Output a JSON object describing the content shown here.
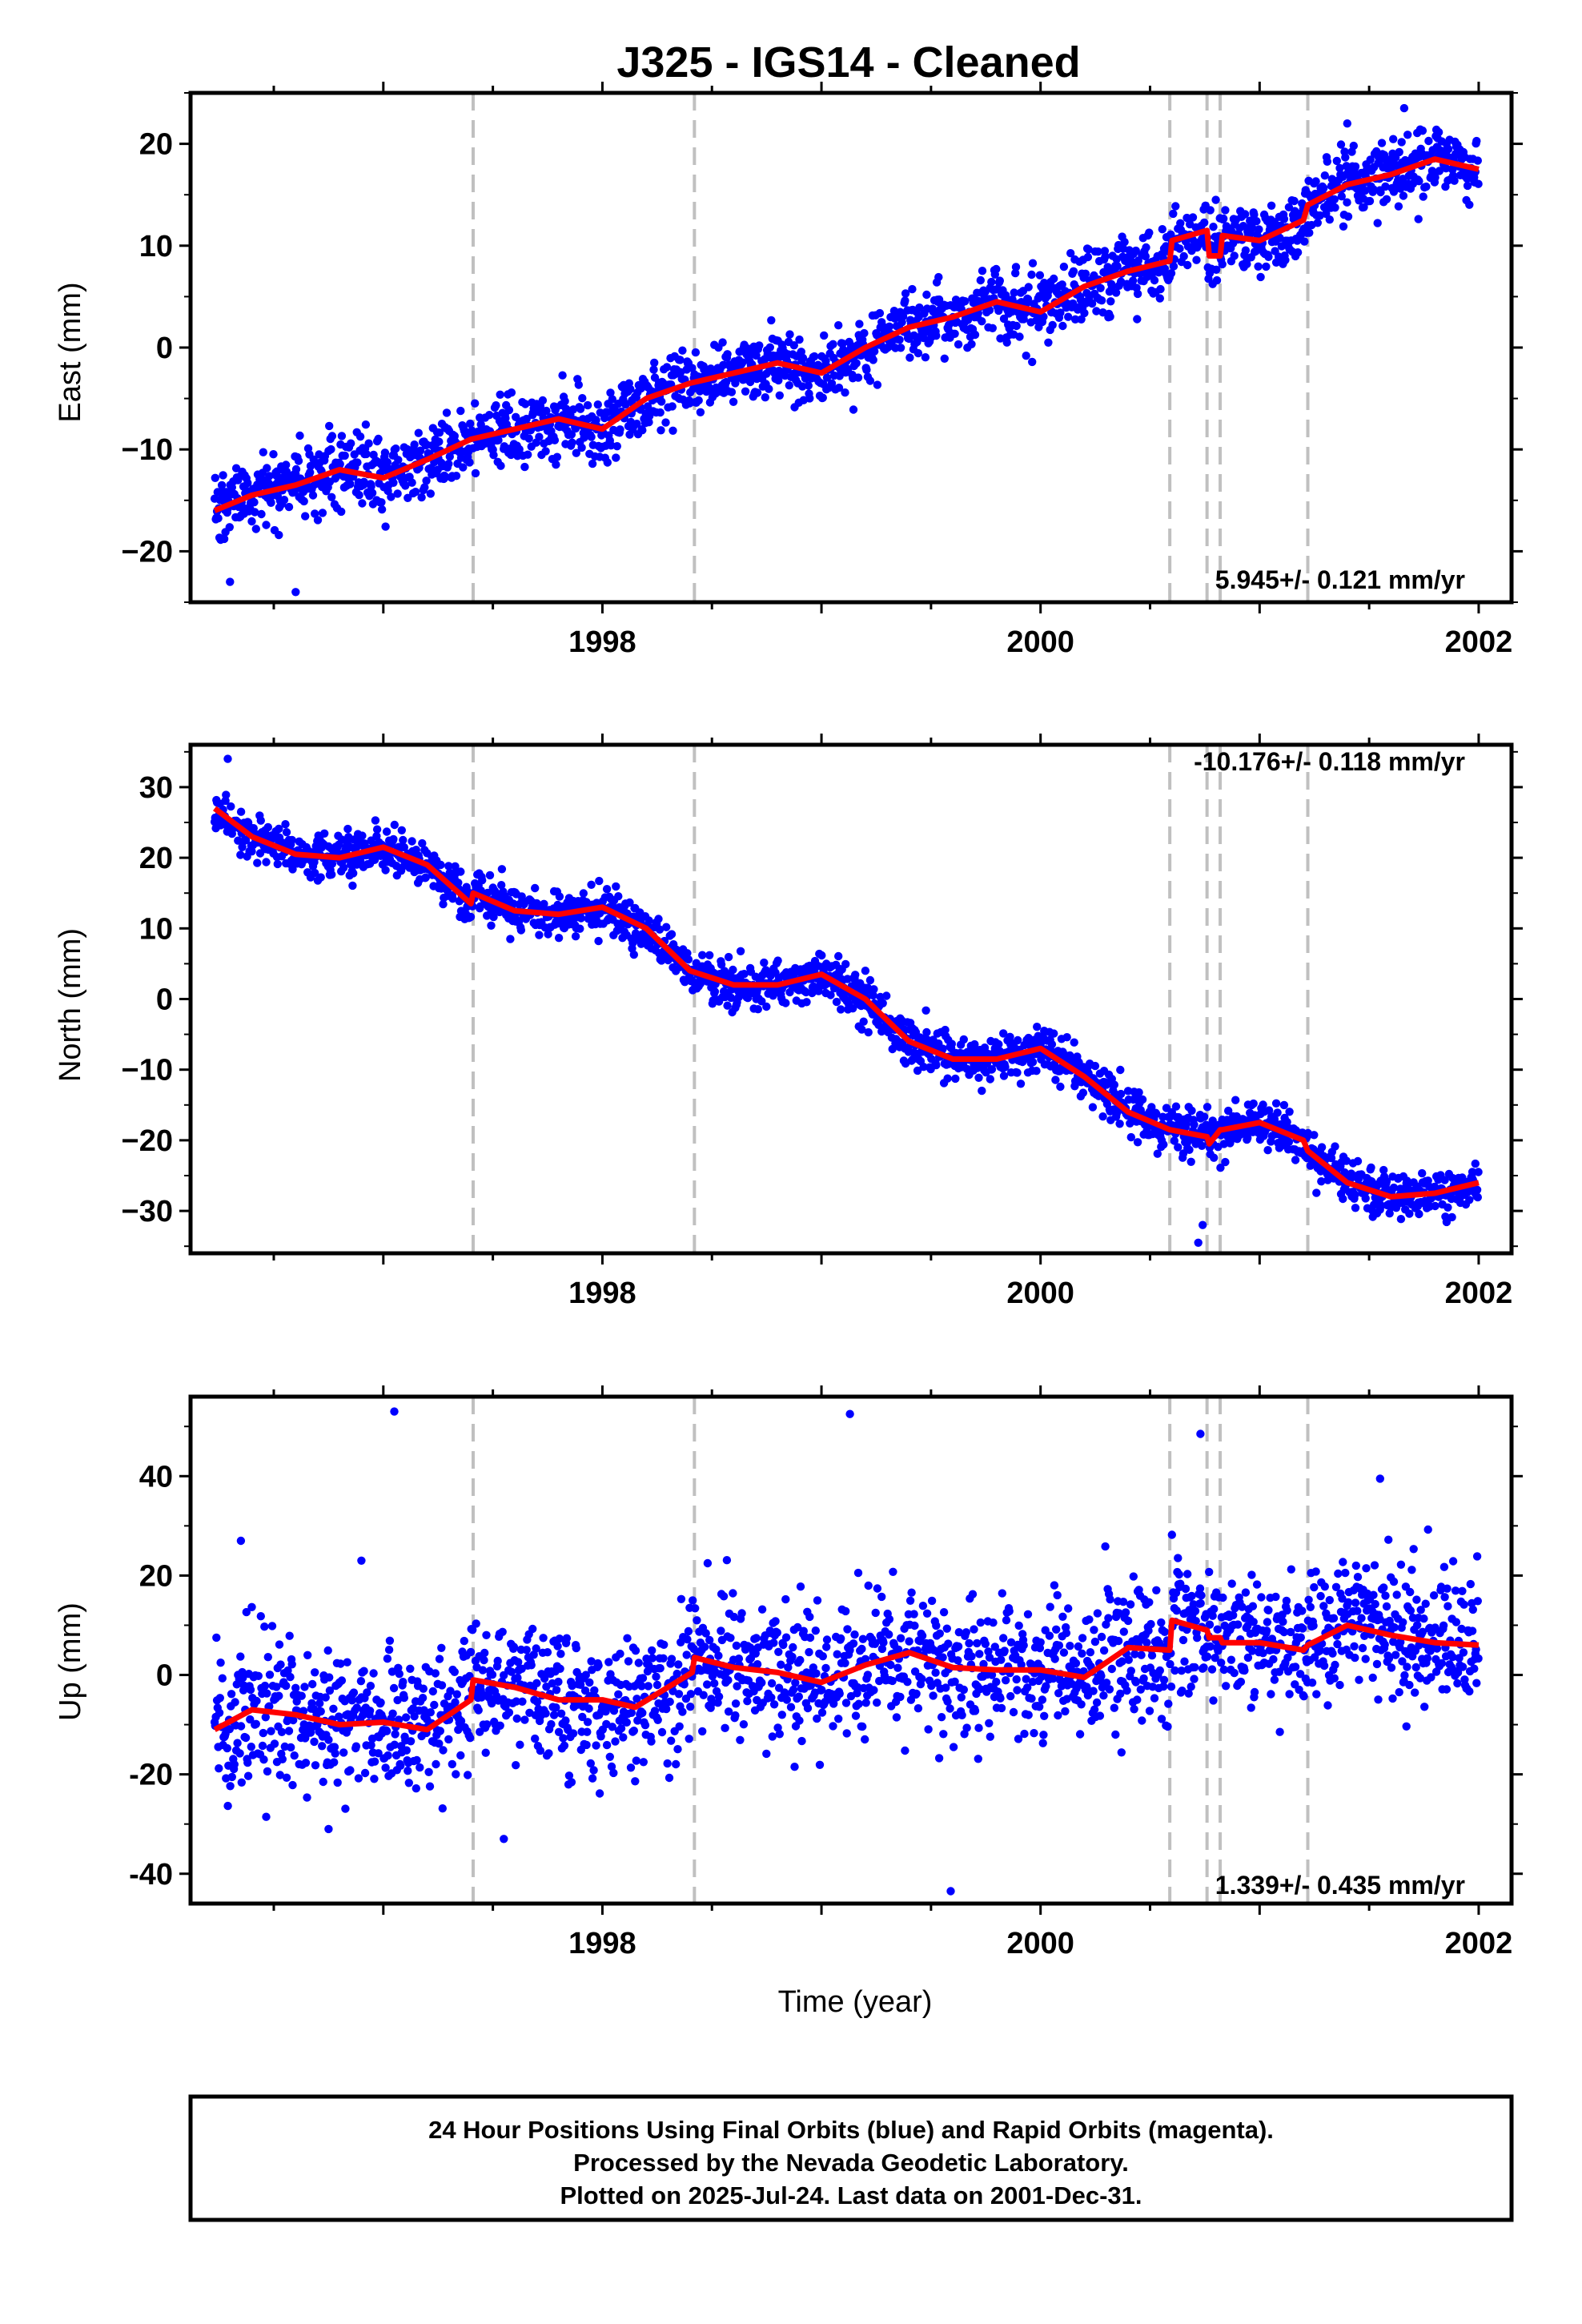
{
  "title": "J325  - IGS14 - Cleaned",
  "colors": {
    "final": "#0000ff",
    "model": "#ff0000",
    "breaks": "#c0c0c0",
    "frame": "#000000"
  },
  "footer": {
    "line1": "24 Hour Positions Using Final Orbits (blue) and Rapid Orbits (magenta).",
    "line2": "Processed by the Nevada Geodetic Laboratory.",
    "line3": "Plotted on 2025-Jul-24. Last data on 2001-Dec-31."
  },
  "chart_data": [
    {
      "type": "scatter",
      "component": "east",
      "ylabel": "East (mm)",
      "xlabel": "",
      "xlim": [
        1996.12,
        2002.15
      ],
      "ylim": [
        -25,
        25
      ],
      "xticks": [
        "1998",
        "2000",
        "2002"
      ],
      "yticks": [
        "20",
        "10",
        "0",
        "−10",
        "−20"
      ],
      "rate_label": "5.945+/- 0.121 mm/yr",
      "rate_position": "bottom-right",
      "rate_mm_per_yr": 5.945,
      "rate_sigma": 0.121,
      "scatter_sigma_mm": 1.7,
      "breaks": [
        1997.41,
        1998.42,
        2000.59,
        2000.76,
        2000.82,
        2001.22
      ],
      "model": {
        "x": [
          1996.23,
          1996.4,
          1996.6,
          1996.8,
          1997.0,
          1997.2,
          1997.4,
          1997.6,
          1997.8,
          1998.0,
          1998.2,
          1998.4,
          1998.6,
          1998.8,
          1999.0,
          1999.2,
          1999.4,
          1999.6,
          1999.8,
          2000.0,
          2000.2,
          2000.4,
          2000.59,
          2000.6,
          2000.76,
          2000.77,
          2000.82,
          2000.83,
          2001.0,
          2001.2,
          2001.22,
          2001.4,
          2001.6,
          2001.8,
          2002.0
        ],
        "y": [
          -16,
          -14.5,
          -13.5,
          -12,
          -12.8,
          -11,
          -9,
          -8,
          -7,
          -8,
          -5,
          -3.5,
          -2.5,
          -1.5,
          -2.5,
          0,
          2,
          3,
          4.5,
          3.5,
          6,
          7.5,
          8.5,
          10.5,
          11.5,
          9,
          9,
          11,
          10.5,
          12.5,
          14,
          16,
          17,
          18.5,
          17.5
        ]
      },
      "outliers": [
        {
          "x": 1996.3,
          "y": -23
        },
        {
          "x": 1996.6,
          "y": -24
        },
        {
          "x": 2000.8,
          "y": 14.5
        },
        {
          "x": 2001.4,
          "y": 22
        },
        {
          "x": 2001.66,
          "y": 23.5
        }
      ]
    },
    {
      "type": "scatter",
      "component": "north",
      "ylabel": "North (mm)",
      "xlabel": "",
      "xlim": [
        1996.12,
        2002.15
      ],
      "ylim": [
        -36,
        36
      ],
      "xticks": [
        "1998",
        "2000",
        "2002"
      ],
      "yticks": [
        "30",
        "20",
        "10",
        "0",
        "−10",
        "−20",
        "−30"
      ],
      "rate_label": "-10.176+/- 0.118 mm/yr",
      "rate_position": "top-right",
      "rate_mm_per_yr": -10.176,
      "rate_sigma": 0.118,
      "scatter_sigma_mm": 1.6,
      "breaks": [
        1997.41,
        1998.42,
        2000.59,
        2000.76,
        2000.82,
        2001.22
      ],
      "model": {
        "x": [
          1996.23,
          1996.4,
          1996.6,
          1996.8,
          1997.0,
          1997.2,
          1997.4,
          1997.41,
          1997.6,
          1997.8,
          1998.0,
          1998.2,
          1998.4,
          1998.6,
          1998.8,
          1999.0,
          1999.2,
          1999.4,
          1999.6,
          1999.8,
          2000.0,
          2000.2,
          2000.4,
          2000.59,
          2000.76,
          2000.77,
          2000.82,
          2000.83,
          2001.0,
          2001.2,
          2001.22,
          2001.4,
          2001.6,
          2001.8,
          2002.0
        ],
        "y": [
          27,
          23,
          20.5,
          20,
          21.5,
          19,
          13.5,
          15,
          12.5,
          12,
          13,
          10,
          4,
          2,
          2,
          3.5,
          0,
          -6,
          -8.5,
          -8.5,
          -7,
          -11,
          -16,
          -18.5,
          -19.5,
          -20.5,
          -18.5,
          -18.5,
          -17.5,
          -20,
          -21.5,
          -26,
          -28,
          -27.5,
          -26
        ]
      },
      "outliers": [
        {
          "x": 1996.29,
          "y": 34
        },
        {
          "x": 2000.72,
          "y": -34.5
        },
        {
          "x": 2000.74,
          "y": -32
        }
      ]
    },
    {
      "type": "scatter",
      "component": "up",
      "ylabel": "Up (mm)",
      "xlabel": "Time (year)",
      "xlim": [
        1996.12,
        2002.15
      ],
      "ylim": [
        -46,
        56
      ],
      "xticks": [
        "1998",
        "2000",
        "2002"
      ],
      "yticks": [
        "40",
        "20",
        "0",
        "-20",
        "-40"
      ],
      "rate_label": "1.339+/- 0.435 mm/yr",
      "rate_position": "bottom-right",
      "rate_mm_per_yr": 1.339,
      "rate_sigma": 0.435,
      "scatter_sigma_mm": 7,
      "breaks": [
        1997.41,
        1998.42,
        2000.59,
        2000.76,
        2000.82,
        2001.22
      ],
      "model": {
        "x": [
          1996.23,
          1996.4,
          1996.6,
          1996.8,
          1997.0,
          1997.2,
          1997.4,
          1997.41,
          1997.6,
          1997.8,
          1998.0,
          1998.15,
          1998.41,
          1998.42,
          1998.6,
          1998.8,
          1999.0,
          1999.2,
          1999.4,
          1999.6,
          1999.8,
          2000.0,
          2000.2,
          2000.4,
          2000.59,
          2000.6,
          2000.76,
          2000.77,
          2000.82,
          2000.83,
          2001.0,
          2001.2,
          2001.22,
          2001.4,
          2001.6,
          2001.8,
          2002.0
        ],
        "y": [
          -11,
          -7,
          -8,
          -10,
          -9.5,
          -11,
          -5,
          -1,
          -2.5,
          -5,
          -5,
          -6.5,
          0.5,
          3.5,
          1.5,
          0.5,
          -1.5,
          2,
          4.5,
          1.5,
          1,
          1,
          -0.5,
          5.5,
          5,
          11,
          9,
          7.5,
          7.5,
          6.5,
          6.5,
          5,
          6,
          10,
          8,
          6.5,
          6
        ]
      },
      "outliers": [
        {
          "x": 1997.05,
          "y": 53
        },
        {
          "x": 1999.13,
          "y": 52.5
        },
        {
          "x": 2000.73,
          "y": 48.5
        },
        {
          "x": 1997.55,
          "y": -33
        },
        {
          "x": 1999.59,
          "y": -43.5
        },
        {
          "x": 1996.75,
          "y": -31
        },
        {
          "x": 1996.35,
          "y": 27
        },
        {
          "x": 1996.9,
          "y": 23
        },
        {
          "x": 2001.55,
          "y": 39.5
        }
      ]
    }
  ]
}
